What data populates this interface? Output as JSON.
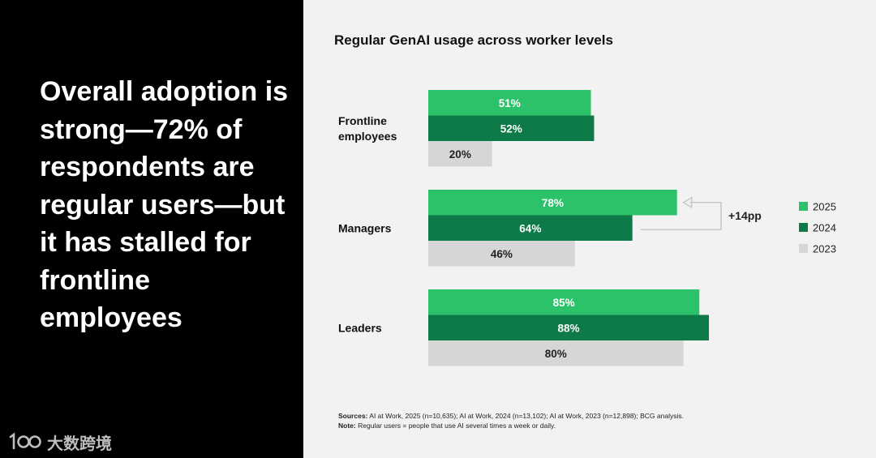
{
  "headline": "Overall adoption is strong—72% of respondents are regular users—but it has stalled for frontline employees",
  "watermark": {
    "logo": "100-logo-icon",
    "text": "大数跨境"
  },
  "colors": {
    "2025": "#2bc26a",
    "2024": "#0e7a47",
    "2023": "#d6d6d6",
    "text_light": "#ffffff",
    "text_dark": "#222222"
  },
  "sources": {
    "label": "Sources:",
    "text": "AI at Work, 2025 (n=10,635);  AI at Work, 2024 (n=13,102);  AI at Work, 2023 (n=12,898); BCG analysis.",
    "note_label": "Note:",
    "note_text": "Regular users = people that use AI several times a week or daily."
  },
  "chart_data": {
    "type": "bar",
    "orientation": "horizontal",
    "title": "Regular GenAI usage across worker levels",
    "categories": [
      "Frontline employees",
      "Managers",
      "Leaders"
    ],
    "category_lines": [
      [
        "Frontline",
        "employees"
      ],
      [
        "Managers"
      ],
      [
        "Leaders"
      ]
    ],
    "series": [
      {
        "name": "2025",
        "values": [
          51,
          78,
          85
        ],
        "labels": [
          "51%",
          "78%",
          "85%"
        ]
      },
      {
        "name": "2024",
        "values": [
          52,
          64,
          88
        ],
        "labels": [
          "52%",
          "64%",
          "88%"
        ]
      },
      {
        "name": "2023",
        "values": [
          20,
          46,
          80
        ],
        "labels": [
          "20%",
          "46%",
          "80%"
        ]
      }
    ],
    "xlim": [
      0,
      100
    ],
    "grid": false,
    "legend": "right",
    "annotation": {
      "category": "Managers",
      "text": "+14pp",
      "from_series": "2024",
      "to_series": "2025"
    }
  }
}
